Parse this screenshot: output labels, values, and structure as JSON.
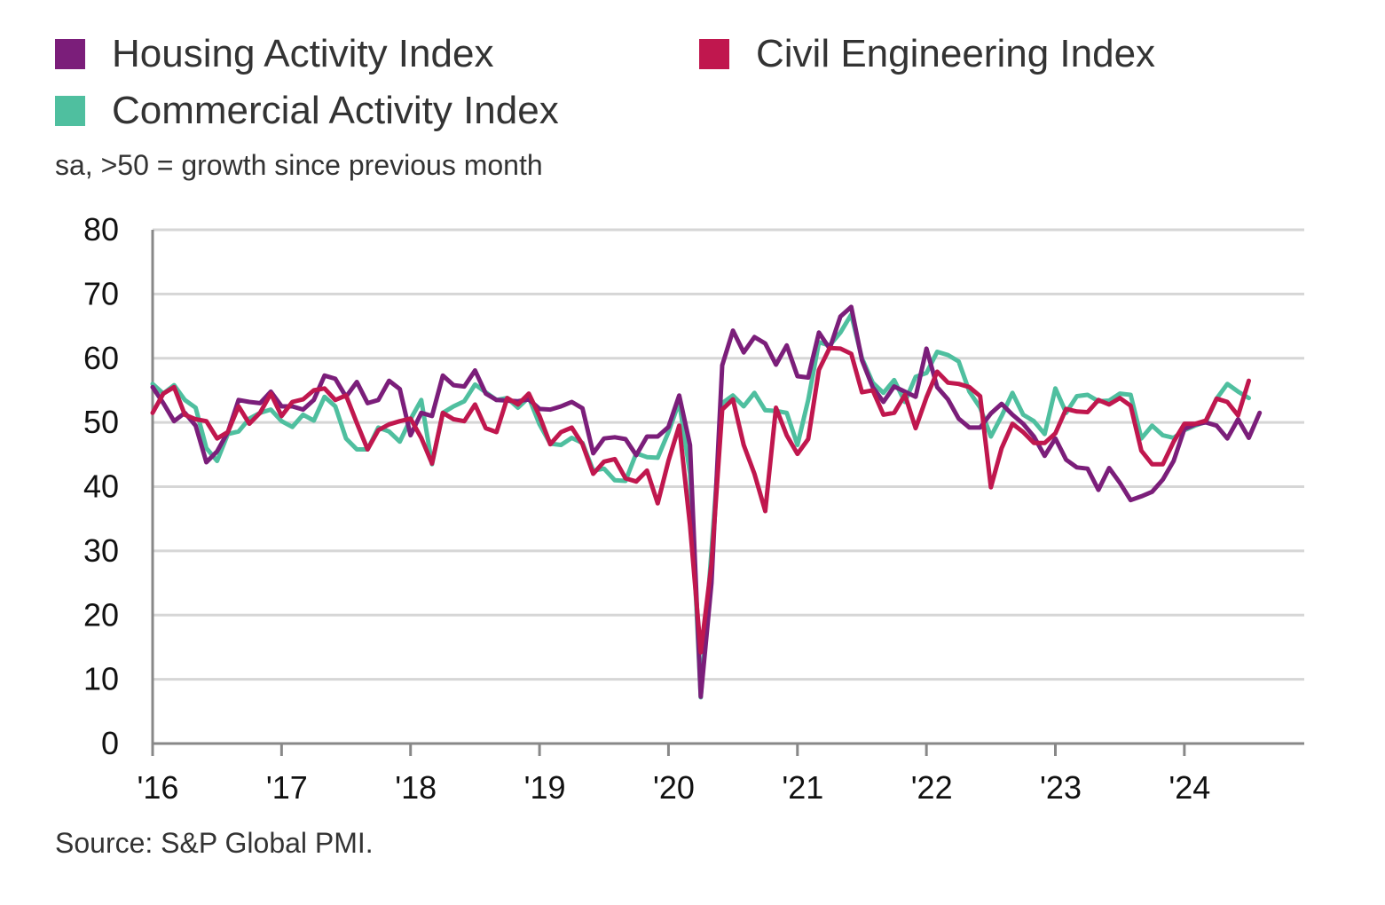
{
  "legend": [
    {
      "label": "Housing Activity Index",
      "color": "#7b1e7a"
    },
    {
      "label": "Civil Engineering Index",
      "color": "#c0174e"
    },
    {
      "label": "Commercial Activity Index",
      "color": "#4fbf9f"
    }
  ],
  "subtitle": "sa, >50 = growth since previous month",
  "source": "Source: S&P Global PMI.",
  "chart_data": {
    "type": "line",
    "ylim": [
      0,
      80
    ],
    "y_ticks": [
      "0",
      "10",
      "20",
      "30",
      "40",
      "50",
      "60",
      "70",
      "80"
    ],
    "x_ticks": [
      "'16",
      "'17",
      "'18",
      "'19",
      "'20",
      "'21",
      "'22",
      "'23",
      "'24"
    ],
    "grid": "horizontal",
    "legend_position": "top-left",
    "x_start": "2016-01",
    "series": [
      {
        "name": "Housing Activity Index",
        "color": "#7b1e7a",
        "values": [
          55.5,
          53.0,
          50.2,
          51.5,
          49.5,
          43.8,
          45.5,
          48.5,
          53.5,
          53.2,
          53.0,
          54.8,
          52.5,
          52.5,
          52.0,
          53.5,
          57.3,
          56.8,
          54.0,
          56.3,
          53.0,
          53.5,
          56.5,
          55.2,
          48.0,
          51.5,
          51.0,
          57.3,
          55.8,
          55.6,
          58.1,
          54.5,
          53.5,
          53.4,
          53.3,
          53.6,
          52.1,
          52.0,
          52.5,
          53.2,
          52.2,
          45.2,
          47.5,
          47.7,
          47.4,
          44.9,
          47.8,
          47.8,
          49.3,
          54.2,
          46.5,
          7.3,
          25.0,
          58.9,
          64.3,
          60.9,
          63.3,
          62.3,
          59.0,
          62.0,
          57.2,
          57.0,
          64.0,
          61.5,
          66.5,
          68.0,
          59.7,
          55.5,
          53.2,
          55.6,
          54.8,
          54.0,
          61.5,
          55.5,
          53.6,
          50.6,
          49.2,
          49.2,
          51.4,
          52.9,
          51.2,
          49.8,
          47.8,
          44.8,
          47.5,
          44.2,
          43.0,
          42.8,
          39.5,
          42.9,
          40.6,
          37.9,
          38.5,
          39.2,
          41.1,
          44.0,
          49.0,
          49.7,
          50.0,
          49.5,
          47.5,
          50.5,
          47.6,
          51.5
        ]
      },
      {
        "name": "Civil Engineering Index",
        "color": "#c0174e",
        "values": [
          51.5,
          54.5,
          55.5,
          51.2,
          50.5,
          50.2,
          47.5,
          48.5,
          52.5,
          49.8,
          51.5,
          54.5,
          51.0,
          53.2,
          53.6,
          55.0,
          55.3,
          53.5,
          54.2,
          49.9,
          45.8,
          48.8,
          49.7,
          50.2,
          50.6,
          47.6,
          43.6,
          51.5,
          50.5,
          50.2,
          52.8,
          49.1,
          48.5,
          53.8,
          52.8,
          54.5,
          51.0,
          46.6,
          48.5,
          49.2,
          46.6,
          42.0,
          43.9,
          44.3,
          41.3,
          40.8,
          42.5,
          37.4,
          44.0,
          49.5,
          34.0,
          14.2,
          28.0,
          52.0,
          53.6,
          46.5,
          42.0,
          36.2,
          52.3,
          48.0,
          45.1,
          47.4,
          58.2,
          61.6,
          61.5,
          60.7,
          54.7,
          55.0,
          51.2,
          51.5,
          54.3,
          49.1,
          53.9,
          57.9,
          56.2,
          56.0,
          55.5,
          54.1,
          39.9,
          46.0,
          49.8,
          48.5,
          46.8,
          46.8,
          48.3,
          52.1,
          51.7,
          51.6,
          53.5,
          52.8,
          53.8,
          52.6,
          45.6,
          43.5,
          43.5,
          47.0,
          49.8,
          49.8,
          50.3,
          53.7,
          53.2,
          51.1,
          56.5
        ]
      },
      {
        "name": "Commercial Activity Index",
        "color": "#4fbf9f",
        "values": [
          56.0,
          54.5,
          55.8,
          53.5,
          52.3,
          46.0,
          44.0,
          48.2,
          48.6,
          50.6,
          51.5,
          52.0,
          50.2,
          49.3,
          51.2,
          50.3,
          54.0,
          52.5,
          47.5,
          45.8,
          45.8,
          49.2,
          48.6,
          47.0,
          50.5,
          53.5,
          43.5,
          51.5,
          52.5,
          53.3,
          55.9,
          54.7,
          53.5,
          53.8,
          52.3,
          53.9,
          49.7,
          46.7,
          46.5,
          47.6,
          46.8,
          42.5,
          42.8,
          41.0,
          40.9,
          45.2,
          44.6,
          44.5,
          48.5,
          53.2,
          42.0,
          7.2,
          30.0,
          53.0,
          54.2,
          52.5,
          54.6,
          51.9,
          51.8,
          51.5,
          46.5,
          53.5,
          62.5,
          62.0,
          64.0,
          66.8,
          60.0,
          56.2,
          54.6,
          56.6,
          53.2,
          57.1,
          57.7,
          61.0,
          60.5,
          59.5,
          54.8,
          52.3,
          47.8,
          51.0,
          54.6,
          51.2,
          50.2,
          48.2,
          55.3,
          51.5,
          54.1,
          54.3,
          53.3,
          53.4,
          54.5,
          54.3,
          47.5,
          49.5,
          48.0,
          47.6,
          48.8,
          49.5,
          50.1,
          53.7,
          56.0,
          54.8,
          53.8
        ]
      }
    ]
  }
}
